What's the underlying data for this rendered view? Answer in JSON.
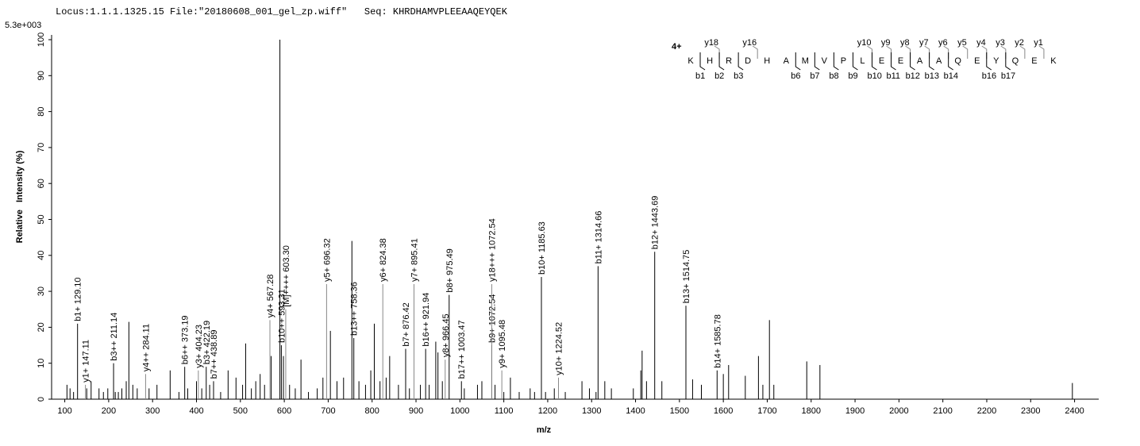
{
  "chart_data": {
    "type": "stem",
    "header": "Locus:1.1.1.1325.15 File:\"20180608_001_gel_zp.wiff\"   Seq: KHRDHAMVPLEEAAQEYQEK",
    "scale_label": "5.3e+003",
    "ylabel": "Relative   Intensity (%)",
    "xlabel": "m/z",
    "xlim": [
      70,
      2455
    ],
    "ylim": [
      0,
      100
    ],
    "xticks": [
      100,
      200,
      300,
      400,
      500,
      600,
      700,
      800,
      900,
      1000,
      1100,
      1200,
      1300,
      1400,
      1500,
      1600,
      1700,
      1800,
      1900,
      2000,
      2100,
      2200,
      2300,
      2400
    ],
    "yticks": [
      0,
      10,
      20,
      30,
      40,
      50,
      60,
      70,
      80,
      90,
      100
    ],
    "series": [
      {
        "color": "#000000",
        "x": [
          105,
          112,
          120,
          150,
          160,
          178,
          188,
          198,
          215,
          222,
          230,
          240,
          246,
          255,
          265,
          292,
          310,
          340,
          360,
          380,
          400,
          412,
          430,
          455,
          472,
          490,
          505,
          512,
          525,
          535,
          545,
          555,
          570,
          590,
          598,
          612,
          625,
          638,
          655,
          675,
          688,
          705,
          720,
          735,
          754,
          770,
          785,
          797,
          805,
          818,
          832,
          840,
          860,
          885,
          910,
          930,
          945,
          950,
          960,
          1010,
          1040,
          1050,
          1080,
          1100,
          1115,
          1135,
          1160,
          1170,
          1195,
          1215,
          1240,
          1278,
          1295,
          1310,
          1330,
          1345,
          1395,
          1412,
          1415,
          1425,
          1460,
          1530,
          1550,
          1600,
          1612,
          1650,
          1680,
          1690,
          1705,
          1715,
          1790,
          1820,
          2395
        ],
        "values": [
          4,
          3,
          2,
          3,
          5,
          3,
          2,
          3,
          2,
          2,
          3,
          5,
          21.5,
          4,
          3,
          3,
          4,
          8,
          2,
          3,
          5,
          3,
          4,
          2,
          8,
          6,
          4,
          15.5,
          3,
          5,
          7,
          4,
          12,
          100,
          12,
          4,
          3,
          11,
          2,
          3,
          6,
          19,
          5,
          6,
          44,
          5,
          4,
          8,
          21,
          5,
          6,
          12,
          4,
          3,
          4,
          4,
          16,
          13,
          5,
          3,
          4,
          5,
          4,
          2,
          6,
          2,
          3,
          2,
          2,
          3,
          2,
          5,
          3,
          2,
          5,
          3,
          3,
          8,
          13.5,
          5,
          5,
          5.5,
          4,
          7,
          9.5,
          6.5,
          12,
          4,
          22,
          4,
          10.5,
          9.5,
          4.5
        ]
      },
      {
        "color": "#000000",
        "x": [
          129.1,
          211.14,
          373.19,
          422.19,
          438.89,
          593.31,
          758.36,
          876.42,
          921.94,
          975.49,
          1003.47,
          1072.54,
          1185.63,
          1314.66,
          1443.69,
          1514.75,
          1585.78
        ],
        "values": [
          21,
          10,
          9,
          9,
          5,
          15,
          17,
          14,
          14,
          29,
          5,
          15,
          34,
          37,
          41,
          26,
          8
        ],
        "labels": [
          "b1+ 129.10",
          "b3++ 211.14",
          "b6++ 373.19",
          "b3+ 422.19",
          "b7++ 438.89",
          "b10++ 593.31",
          "b13++ 758.36",
          "b7+ 876.42",
          "b16++ 921.94",
          "b8+ 975.49",
          "b17++ 1003.47",
          "b9+ 1072.54",
          "b10+ 1185.63",
          "b11+ 1314.66",
          "b12+ 1443.69",
          "b13+ 1514.75",
          "b14+ 1585.78"
        ]
      },
      {
        "color": "#888888",
        "x": [
          147.11,
          284.11,
          404.23,
          567.28,
          603.3,
          696.32,
          824.38,
          895.41,
          966.45,
          1072.54,
          1095.48,
          1224.52
        ],
        "values": [
          4,
          7,
          8,
          22,
          25,
          32,
          32,
          32,
          11,
          32,
          8,
          6
        ],
        "labels": [
          "y1+ 147.11",
          "y4++ 284.11",
          "y3+ 404.23",
          "y4+ 567.28",
          "[M]++++ 603.30",
          "y5+ 696.32",
          "y6+ 824.38",
          "y7+ 895.41",
          "y8+ 966.45",
          "y18+++ 1072.54",
          "y9+ 1095.48",
          "y10+ 1224.52"
        ]
      }
    ],
    "sequence": {
      "charge": "4+",
      "residues": [
        "K",
        "H",
        "R",
        "D",
        "H",
        "A",
        "M",
        "V",
        "P",
        "L",
        "E",
        "E",
        "A",
        "A",
        "Q",
        "E",
        "Y",
        "Q",
        "E",
        "K"
      ],
      "y_labels": [
        null,
        "y18",
        null,
        "y16",
        null,
        null,
        null,
        null,
        null,
        "y10",
        "y9",
        "y8",
        "y7",
        "y6",
        "y5",
        "y4",
        "y3",
        "y2",
        "y1"
      ],
      "b_labels": [
        "b1",
        "b2",
        "b3",
        null,
        null,
        "b6",
        "b7",
        "b8",
        "b9",
        "b10",
        "b11",
        "b12",
        "b13",
        "b14",
        null,
        "b16",
        "b17",
        null,
        null
      ]
    }
  }
}
